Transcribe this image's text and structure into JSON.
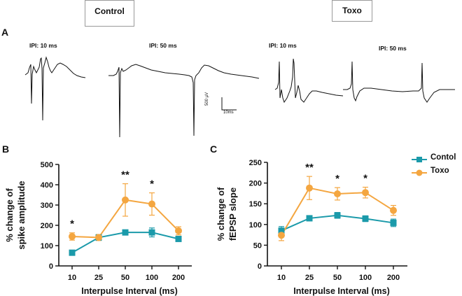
{
  "labels": {
    "control_box": "Control",
    "toxo_box": "Toxo",
    "panel_a": "A",
    "panel_b": "B",
    "panel_c": "C",
    "ipi_10_control": "IPI: 10 ms",
    "ipi_50_control": "IPI: 50 ms",
    "ipi_10_toxo": "IPI: 10 ms",
    "ipi_50_toxo": "IPI: 50 ms",
    "scale_voltage": "500 µV",
    "scale_time": "10ms"
  },
  "legend": {
    "contol": "Contol",
    "toxo": "Toxo"
  },
  "colors": {
    "contol": "#1b9aaa",
    "toxo": "#f4a640"
  },
  "chart_data": [
    {
      "type": "line",
      "title": "",
      "xlabel": "Interpulse Interval (ms)",
      "ylabel_lines": [
        "% change of",
        "spike amplitude"
      ],
      "categories": [
        "10",
        "25",
        "50",
        "100",
        "200"
      ],
      "ylim": [
        0,
        500
      ],
      "yticks": [
        "0",
        "100",
        "200",
        "300",
        "400",
        "500"
      ],
      "series": [
        {
          "name": "Contol",
          "values": [
            65,
            140,
            165,
            165,
            133
          ],
          "errors": [
            10,
            12,
            12,
            22,
            10
          ]
        },
        {
          "name": "Toxo",
          "values": [
            145,
            140,
            325,
            305,
            173
          ],
          "errors": [
            18,
            15,
            80,
            55,
            20
          ]
        }
      ],
      "annotations": [
        {
          "category": "10",
          "text": "*"
        },
        {
          "category": "50",
          "text": "**"
        },
        {
          "category": "100",
          "text": "*"
        }
      ]
    },
    {
      "type": "line",
      "title": "",
      "xlabel": "Interpulse Interval (ms)",
      "ylabel_lines": [
        "% change of",
        "fEPSP slope"
      ],
      "categories": [
        "10",
        "25",
        "50",
        "100",
        "200"
      ],
      "ylim": [
        0,
        250
      ],
      "yticks": [
        "0",
        "50",
        "100",
        "150",
        "200",
        "250"
      ],
      "series": [
        {
          "name": "Contol",
          "values": [
            85,
            115,
            122,
            114,
            104
          ],
          "errors": [
            10,
            6,
            7,
            7,
            9
          ]
        },
        {
          "name": "Toxo",
          "values": [
            74,
            188,
            174,
            177,
            134
          ],
          "errors": [
            13,
            28,
            15,
            13,
            12
          ]
        }
      ],
      "annotations": [
        {
          "category": "25",
          "text": "**"
        },
        {
          "category": "50",
          "text": "*"
        },
        {
          "category": "100",
          "text": "*"
        }
      ]
    }
  ]
}
